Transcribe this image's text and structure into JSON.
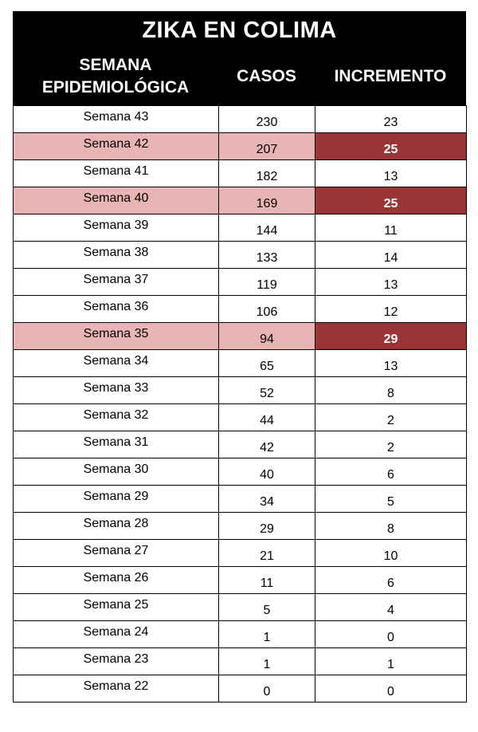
{
  "title": "ZIKA EN COLIMA",
  "headers": {
    "week_line1": "SEMANA",
    "week_line2": "EPIDEMIOLÓGICA",
    "cases": "CASOS",
    "increment": "INCREMENTO"
  },
  "colors": {
    "highlight_row": "#e8b4b4",
    "highlight_increment": "#9b3535"
  },
  "rows": [
    {
      "week": "Semana 43",
      "cases": "230",
      "increment": "23",
      "highlight": false
    },
    {
      "week": "Semana 42",
      "cases": "207",
      "increment": "25",
      "highlight": true
    },
    {
      "week": "Semana 41",
      "cases": "182",
      "increment": "13",
      "highlight": false
    },
    {
      "week": "Semana 40",
      "cases": "169",
      "increment": "25",
      "highlight": true
    },
    {
      "week": "Semana 39",
      "cases": "144",
      "increment": "11",
      "highlight": false
    },
    {
      "week": "Semana 38",
      "cases": "133",
      "increment": "14",
      "highlight": false
    },
    {
      "week": "Semana 37",
      "cases": "119",
      "increment": "13",
      "highlight": false
    },
    {
      "week": "Semana 36",
      "cases": "106",
      "increment": "12",
      "highlight": false
    },
    {
      "week": "Semana 35",
      "cases": "94",
      "increment": "29",
      "highlight": true
    },
    {
      "week": "Semana 34",
      "cases": "65",
      "increment": "13",
      "highlight": false
    },
    {
      "week": "Semana 33",
      "cases": "52",
      "increment": "8",
      "highlight": false
    },
    {
      "week": "Semana 32",
      "cases": "44",
      "increment": "2",
      "highlight": false
    },
    {
      "week": "Semana 31",
      "cases": "42",
      "increment": "2",
      "highlight": false
    },
    {
      "week": "Semana 30",
      "cases": "40",
      "increment": "6",
      "highlight": false
    },
    {
      "week": "Semana 29",
      "cases": "34",
      "increment": "5",
      "highlight": false
    },
    {
      "week": "Semana 28",
      "cases": "29",
      "increment": "8",
      "highlight": false
    },
    {
      "week": "Semana 27",
      "cases": "21",
      "increment": "10",
      "highlight": false
    },
    {
      "week": "Semana 26",
      "cases": "11",
      "increment": "6",
      "highlight": false
    },
    {
      "week": "Semana 25",
      "cases": "5",
      "increment": "4",
      "highlight": false
    },
    {
      "week": "Semana 24",
      "cases": "1",
      "increment": "0",
      "highlight": false
    },
    {
      "week": "Semana 23",
      "cases": "1",
      "increment": "1",
      "highlight": false
    },
    {
      "week": "Semana 22",
      "cases": "0",
      "increment": "0",
      "highlight": false
    }
  ]
}
